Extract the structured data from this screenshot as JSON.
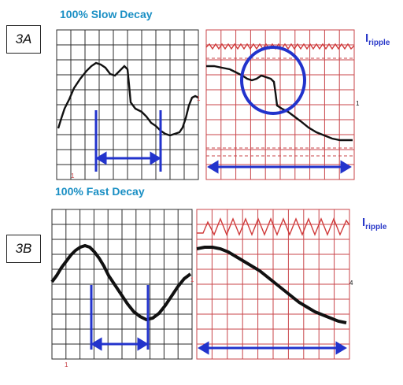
{
  "sections": {
    "slow": {
      "heading": "100% Slow Decay",
      "tag": "3A",
      "ripple_label": "I",
      "ripple_sub": "ripple"
    },
    "fast": {
      "heading": "100% Fast Decay",
      "tag": "3B",
      "ripple_label": "I",
      "ripple_sub": "ripple"
    }
  },
  "colors": {
    "heading": "#1a8fc4",
    "grid_black": "#2b2b2b",
    "grid_red": "#c8454a",
    "trace": "#111111",
    "annotation": "#2233cc",
    "ripple_trace": "#d03a3a"
  },
  "icons": [
    "double-arrow-icon",
    "highlight-circle-icon",
    "marker-tick-icon"
  ]
}
